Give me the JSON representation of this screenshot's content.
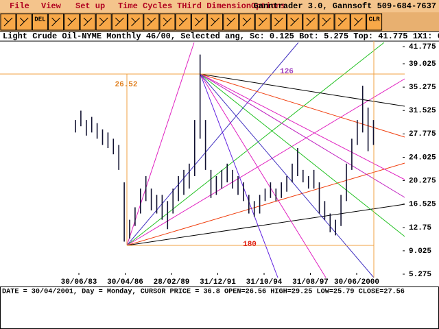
{
  "menu": {
    "items": [
      "File",
      "View",
      "Set up",
      "Time Cycles",
      "THird Dimension",
      "Options"
    ],
    "brand": "Ganntrader 3.0, Gannsoft 509-684-7637"
  },
  "toolbar": {
    "labels": [
      "DEL",
      "CLR"
    ]
  },
  "info_line": "Light Crude Oil-NYME Monthly 46/00, Selected ang, Sc: 0.125 Bot: 5.275 Top: 41.775 1X1: 0.5",
  "chart": {
    "price_ticks": [
      41.775,
      39.025,
      35.275,
      31.525,
      27.775,
      24.025,
      20.275,
      16.525,
      12.75,
      9.025,
      5.275
    ],
    "date_labels": [
      "30/06/83",
      "30/04/86",
      "28/02/89",
      "31/12/91",
      "31/10/94",
      "31/08/97",
      "30/06/2000"
    ],
    "annotations": {
      "range": "26.52",
      "angle": "126",
      "span": "180"
    },
    "price_bars": [
      {
        "high": 30,
        "low": 28
      },
      {
        "high": 31.5,
        "low": 29
      },
      {
        "high": 30,
        "low": 27.5
      },
      {
        "high": 30.5,
        "low": 28
      },
      {
        "high": 29.5,
        "low": 27
      },
      {
        "high": 28.5,
        "low": 26
      },
      {
        "high": 28,
        "low": 25.5
      },
      {
        "high": 27,
        "low": 24.5
      },
      {
        "high": 26,
        "low": 22
      },
      {
        "high": 20,
        "low": 10.5
      },
      {
        "high": 14,
        "low": 11
      },
      {
        "high": 16,
        "low": 13
      },
      {
        "high": 19,
        "low": 15
      },
      {
        "high": 21,
        "low": 17
      },
      {
        "high": 19,
        "low": 15.5
      },
      {
        "high": 18,
        "low": 15
      },
      {
        "high": 18,
        "low": 14
      },
      {
        "high": 17,
        "low": 12.5
      },
      {
        "high": 19,
        "low": 15
      },
      {
        "high": 21,
        "low": 17
      },
      {
        "high": 22,
        "low": 18
      },
      {
        "high": 23,
        "low": 19
      },
      {
        "high": 30,
        "low": 21
      },
      {
        "high": 40.5,
        "low": 27
      },
      {
        "high": 30,
        "low": 22
      },
      {
        "high": 22,
        "low": 17.5
      },
      {
        "high": 21,
        "low": 18
      },
      {
        "high": 22,
        "low": 19
      },
      {
        "high": 23,
        "low": 20
      },
      {
        "high": 22,
        "low": 19
      },
      {
        "high": 21,
        "low": 18
      },
      {
        "high": 20,
        "low": 17
      },
      {
        "high": 18,
        "low": 15
      },
      {
        "high": 17,
        "low": 14.5
      },
      {
        "high": 18,
        "low": 15
      },
      {
        "high": 19,
        "low": 17
      },
      {
        "high": 20,
        "low": 17.5
      },
      {
        "high": 19,
        "low": 17
      },
      {
        "high": 20,
        "low": 17.5
      },
      {
        "high": 21,
        "low": 18.5
      },
      {
        "high": 23,
        "low": 20
      },
      {
        "high": 25.5,
        "low": 21
      },
      {
        "high": 22,
        "low": 20
      },
      {
        "high": 21,
        "low": 19
      },
      {
        "high": 22,
        "low": 19
      },
      {
        "high": 20,
        "low": 15
      },
      {
        "high": 17,
        "low": 14
      },
      {
        "high": 15,
        "low": 12
      },
      {
        "high": 14,
        "low": 11.5
      },
      {
        "high": 18,
        "low": 13
      },
      {
        "high": 23,
        "low": 17
      },
      {
        "high": 27,
        "low": 22
      },
      {
        "high": 30,
        "low": 26
      },
      {
        "high": 35.5,
        "low": 28
      },
      {
        "high": 32,
        "low": 25
      },
      {
        "high": 30,
        "low": 26
      }
    ]
  },
  "status_line": "DATE = 30/04/2001, Day = Monday, CURSOR PRICE = 36.8 OPEN=26.56 HIGH=29.25 LOW=25.79 CLOSE=27.56"
}
